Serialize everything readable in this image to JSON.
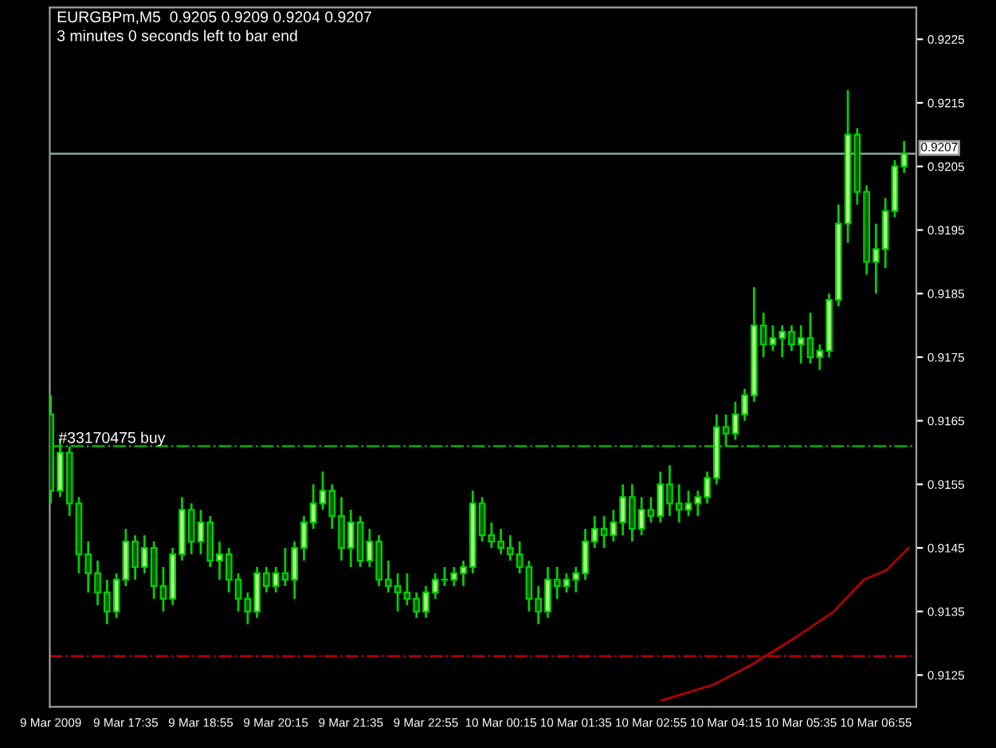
{
  "chart_data": {
    "type": "candlestick",
    "title": "EURGBPm,M5  0.9205 0.9209 0.9204 0.9207",
    "subtitle": "3 minutes 0 seconds left to bar end",
    "x": [
      "2009-03-09T16:15",
      "2009-03-09T16:25",
      "2009-03-09T16:35",
      "2009-03-09T16:45",
      "2009-03-09T16:55",
      "2009-03-09T17:05",
      "2009-03-09T17:15",
      "2009-03-09T17:25",
      "2009-03-09T17:35",
      "2009-03-09T17:45",
      "2009-03-09T17:55",
      "2009-03-09T18:05",
      "2009-03-09T18:15",
      "2009-03-09T18:25",
      "2009-03-09T18:35",
      "2009-03-09T18:45",
      "2009-03-09T18:55",
      "2009-03-09T19:05",
      "2009-03-09T19:15",
      "2009-03-09T19:25",
      "2009-03-09T19:35",
      "2009-03-09T19:45",
      "2009-03-09T19:55",
      "2009-03-09T20:05",
      "2009-03-09T20:15",
      "2009-03-09T20:25",
      "2009-03-09T20:35",
      "2009-03-09T20:45",
      "2009-03-09T20:55",
      "2009-03-09T21:05",
      "2009-03-09T21:15",
      "2009-03-09T21:25",
      "2009-03-09T21:35",
      "2009-03-09T21:45",
      "2009-03-09T21:55",
      "2009-03-09T22:05",
      "2009-03-09T22:15",
      "2009-03-09T22:25",
      "2009-03-09T22:35",
      "2009-03-09T22:45",
      "2009-03-09T22:55",
      "2009-03-09T23:05",
      "2009-03-09T23:15",
      "2009-03-09T23:25",
      "2009-03-09T23:35",
      "2009-03-09T23:45",
      "2009-03-09T23:55",
      "2009-03-10T00:05",
      "2009-03-10T00:15",
      "2009-03-10T00:25",
      "2009-03-10T00:35",
      "2009-03-10T00:45",
      "2009-03-10T00:55",
      "2009-03-10T01:05",
      "2009-03-10T01:15",
      "2009-03-10T01:25",
      "2009-03-10T01:35",
      "2009-03-10T01:45",
      "2009-03-10T01:55",
      "2009-03-10T02:05",
      "2009-03-10T02:15",
      "2009-03-10T02:25",
      "2009-03-10T02:35",
      "2009-03-10T02:45",
      "2009-03-10T02:55",
      "2009-03-10T03:05",
      "2009-03-10T03:15",
      "2009-03-10T03:25",
      "2009-03-10T03:35",
      "2009-03-10T03:45",
      "2009-03-10T03:55",
      "2009-03-10T04:05",
      "2009-03-10T04:15",
      "2009-03-10T04:25",
      "2009-03-10T04:35",
      "2009-03-10T04:45",
      "2009-03-10T04:55",
      "2009-03-10T05:05",
      "2009-03-10T05:15",
      "2009-03-10T05:25",
      "2009-03-10T05:35",
      "2009-03-10T05:45",
      "2009-03-10T05:55",
      "2009-03-10T06:05",
      "2009-03-10T06:15",
      "2009-03-10T06:25",
      "2009-03-10T06:35",
      "2009-03-10T06:45",
      "2009-03-10T06:55",
      "2009-03-10T07:05",
      "2009-03-10T07:15",
      "2009-03-10T07:25"
    ],
    "series": [
      {
        "color": "#00d000",
        "ohlc": [
          [
            0.9166,
            0.9169,
            0.9152,
            0.9154
          ],
          [
            0.9154,
            0.9162,
            0.9153,
            0.916
          ],
          [
            0.916,
            0.9161,
            0.915,
            0.9152
          ],
          [
            0.9152,
            0.9153,
            0.9141,
            0.9144
          ],
          [
            0.9144,
            0.9146,
            0.9138,
            0.9141
          ],
          [
            0.9141,
            0.9143,
            0.9136,
            0.9138
          ],
          [
            0.9138,
            0.914,
            0.9133,
            0.9135
          ],
          [
            0.9135,
            0.9141,
            0.9134,
            0.914
          ],
          [
            0.914,
            0.9148,
            0.9139,
            0.9146
          ],
          [
            0.9146,
            0.9147,
            0.914,
            0.9142
          ],
          [
            0.9142,
            0.9147,
            0.9141,
            0.9145
          ],
          [
            0.9145,
            0.9146,
            0.9137,
            0.9139
          ],
          [
            0.9139,
            0.9142,
            0.9135,
            0.9137
          ],
          [
            0.9137,
            0.9145,
            0.9136,
            0.9144
          ],
          [
            0.9144,
            0.9153,
            0.9143,
            0.9151
          ],
          [
            0.9151,
            0.9152,
            0.9144,
            0.9146
          ],
          [
            0.9146,
            0.9151,
            0.9144,
            0.9149
          ],
          [
            0.9149,
            0.915,
            0.9142,
            0.9143
          ],
          [
            0.9143,
            0.9146,
            0.914,
            0.9144
          ],
          [
            0.9144,
            0.9145,
            0.9138,
            0.914
          ],
          [
            0.914,
            0.9141,
            0.9135,
            0.9137
          ],
          [
            0.9137,
            0.9138,
            0.9133,
            0.9135
          ],
          [
            0.9135,
            0.9142,
            0.9134,
            0.9141
          ],
          [
            0.9141,
            0.9142,
            0.9138,
            0.9139
          ],
          [
            0.9139,
            0.9142,
            0.9138,
            0.9141
          ],
          [
            0.9141,
            0.9145,
            0.9139,
            0.914
          ],
          [
            0.914,
            0.9146,
            0.9137,
            0.9145
          ],
          [
            0.9145,
            0.915,
            0.9143,
            0.9149
          ],
          [
            0.9149,
            0.9155,
            0.9148,
            0.9152
          ],
          [
            0.9152,
            0.9157,
            0.9151,
            0.9154
          ],
          [
            0.9154,
            0.9155,
            0.9148,
            0.915
          ],
          [
            0.915,
            0.9153,
            0.9143,
            0.9145
          ],
          [
            0.9145,
            0.9151,
            0.9142,
            0.9149
          ],
          [
            0.9149,
            0.915,
            0.9142,
            0.9143
          ],
          [
            0.9143,
            0.9148,
            0.9142,
            0.9146
          ],
          [
            0.9146,
            0.9147,
            0.9139,
            0.914
          ],
          [
            0.914,
            0.9143,
            0.9138,
            0.9139
          ],
          [
            0.9139,
            0.9141,
            0.9135,
            0.9138
          ],
          [
            0.9138,
            0.9141,
            0.9136,
            0.9137
          ],
          [
            0.9137,
            0.9138,
            0.9134,
            0.9135
          ],
          [
            0.9135,
            0.9139,
            0.9134,
            0.9138
          ],
          [
            0.9138,
            0.9141,
            0.9137,
            0.914
          ],
          [
            0.914,
            0.9142,
            0.9139,
            0.914
          ],
          [
            0.914,
            0.9142,
            0.9139,
            0.9141
          ],
          [
            0.9141,
            0.9143,
            0.9139,
            0.9142
          ],
          [
            0.9142,
            0.9154,
            0.9141,
            0.9152
          ],
          [
            0.9152,
            0.9153,
            0.9146,
            0.9147
          ],
          [
            0.9147,
            0.9149,
            0.9145,
            0.9146
          ],
          [
            0.9146,
            0.9148,
            0.9144,
            0.9145
          ],
          [
            0.9145,
            0.9147,
            0.9143,
            0.9144
          ],
          [
            0.9144,
            0.9146,
            0.9141,
            0.9142
          ],
          [
            0.9142,
            0.9143,
            0.9135,
            0.9137
          ],
          [
            0.9137,
            0.9139,
            0.9133,
            0.9135
          ],
          [
            0.9135,
            0.9142,
            0.9134,
            0.914
          ],
          [
            0.914,
            0.9142,
            0.9137,
            0.9139
          ],
          [
            0.9139,
            0.9141,
            0.9138,
            0.914
          ],
          [
            0.914,
            0.9142,
            0.9138,
            0.9141
          ],
          [
            0.9141,
            0.9148,
            0.914,
            0.9146
          ],
          [
            0.9146,
            0.915,
            0.9145,
            0.9148
          ],
          [
            0.9148,
            0.915,
            0.9145,
            0.9147
          ],
          [
            0.9147,
            0.9151,
            0.9146,
            0.9149
          ],
          [
            0.9149,
            0.9155,
            0.9147,
            0.9153
          ],
          [
            0.9153,
            0.9155,
            0.9146,
            0.9148
          ],
          [
            0.9148,
            0.9153,
            0.9147,
            0.9151
          ],
          [
            0.9151,
            0.9153,
            0.9149,
            0.915
          ],
          [
            0.915,
            0.9157,
            0.9149,
            0.9155
          ],
          [
            0.9155,
            0.9158,
            0.915,
            0.9152
          ],
          [
            0.9152,
            0.9155,
            0.9149,
            0.9151
          ],
          [
            0.9151,
            0.9154,
            0.915,
            0.9152
          ],
          [
            0.9152,
            0.9154,
            0.915,
            0.9153
          ],
          [
            0.9153,
            0.9157,
            0.9152,
            0.9156
          ],
          [
            0.9156,
            0.9166,
            0.9155,
            0.9164
          ],
          [
            0.9164,
            0.9166,
            0.9161,
            0.9163
          ],
          [
            0.9163,
            0.9168,
            0.9162,
            0.9166
          ],
          [
            0.9166,
            0.917,
            0.9165,
            0.9169
          ],
          [
            0.9169,
            0.9186,
            0.9168,
            0.918
          ],
          [
            0.918,
            0.9182,
            0.9175,
            0.9177
          ],
          [
            0.9177,
            0.918,
            0.9176,
            0.9178
          ],
          [
            0.9178,
            0.918,
            0.9175,
            0.9179
          ],
          [
            0.9179,
            0.918,
            0.9176,
            0.9177
          ],
          [
            0.9177,
            0.918,
            0.9174,
            0.9178
          ],
          [
            0.9178,
            0.9182,
            0.9174,
            0.9175
          ],
          [
            0.9175,
            0.9177,
            0.9173,
            0.9176
          ],
          [
            0.9176,
            0.9185,
            0.9175,
            0.9184
          ],
          [
            0.9184,
            0.9199,
            0.9183,
            0.9196
          ],
          [
            0.9196,
            0.9217,
            0.9193,
            0.921
          ],
          [
            0.921,
            0.9211,
            0.9199,
            0.9201
          ],
          [
            0.9201,
            0.9202,
            0.9188,
            0.919
          ],
          [
            0.919,
            0.9196,
            0.9185,
            0.9192
          ],
          [
            0.9192,
            0.92,
            0.9189,
            0.9198
          ],
          [
            0.9198,
            0.9206,
            0.9197,
            0.9205
          ],
          [
            0.9205,
            0.9209,
            0.9204,
            0.9207
          ]
        ]
      },
      {
        "type": "line",
        "color": "#b40000",
        "x": [
          "2009-03-10T03:06",
          "2009-03-10T04:02",
          "2009-03-10T04:42",
          "2009-03-10T05:30",
          "2009-03-10T06:10",
          "2009-03-10T06:42",
          "2009-03-10T07:06",
          "2009-03-10T07:30"
        ],
        "values": [
          0.9121,
          0.91235,
          0.91266,
          0.9131,
          0.9135,
          0.914,
          0.91415,
          0.9145
        ]
      }
    ],
    "xlim": [
      "2009-03-09T16:14",
      "2009-03-10T07:38"
    ],
    "xticks": [
      {
        "value": "2009-03-09T16:15",
        "label": "9 Mar 2009"
      },
      {
        "value": "2009-03-09T17:35",
        "label": "9 Mar 17:35"
      },
      {
        "value": "2009-03-09T18:55",
        "label": "9 Mar 18:55"
      },
      {
        "value": "2009-03-09T20:15",
        "label": "9 Mar 20:15"
      },
      {
        "value": "2009-03-09T21:35",
        "label": "9 Mar 21:35"
      },
      {
        "value": "2009-03-09T22:55",
        "label": "9 Mar 22:55"
      },
      {
        "value": "2009-03-10T00:15",
        "label": "10 Mar 00:15"
      },
      {
        "value": "2009-03-10T01:35",
        "label": "10 Mar 01:35"
      },
      {
        "value": "2009-03-10T02:55",
        "label": "10 Mar 02:55"
      },
      {
        "value": "2009-03-10T04:15",
        "label": "10 Mar 04:15"
      },
      {
        "value": "2009-03-10T05:35",
        "label": "10 Mar 05:35"
      },
      {
        "value": "2009-03-10T06:55",
        "label": "10 Mar 06:55"
      }
    ],
    "ylim": [
      0.912,
      0.923
    ],
    "yticks": [
      0.9125,
      0.9135,
      0.9145,
      0.9155,
      0.9165,
      0.9175,
      0.9185,
      0.9195,
      0.9205,
      0.9215,
      0.9225
    ],
    "ref_lines": [
      {
        "axis": "y",
        "value": 0.9207,
        "label": "0.9207",
        "color": "#8fa0a0",
        "line_style": "solid"
      },
      {
        "axis": "y",
        "value": 0.9161,
        "label": "#33170475 buy",
        "color": "#00b400",
        "line_style": "dashdot"
      },
      {
        "axis": "y",
        "value": 0.9128,
        "color": "#b40000",
        "line_style": "dashdot"
      }
    ],
    "grid": false
  }
}
